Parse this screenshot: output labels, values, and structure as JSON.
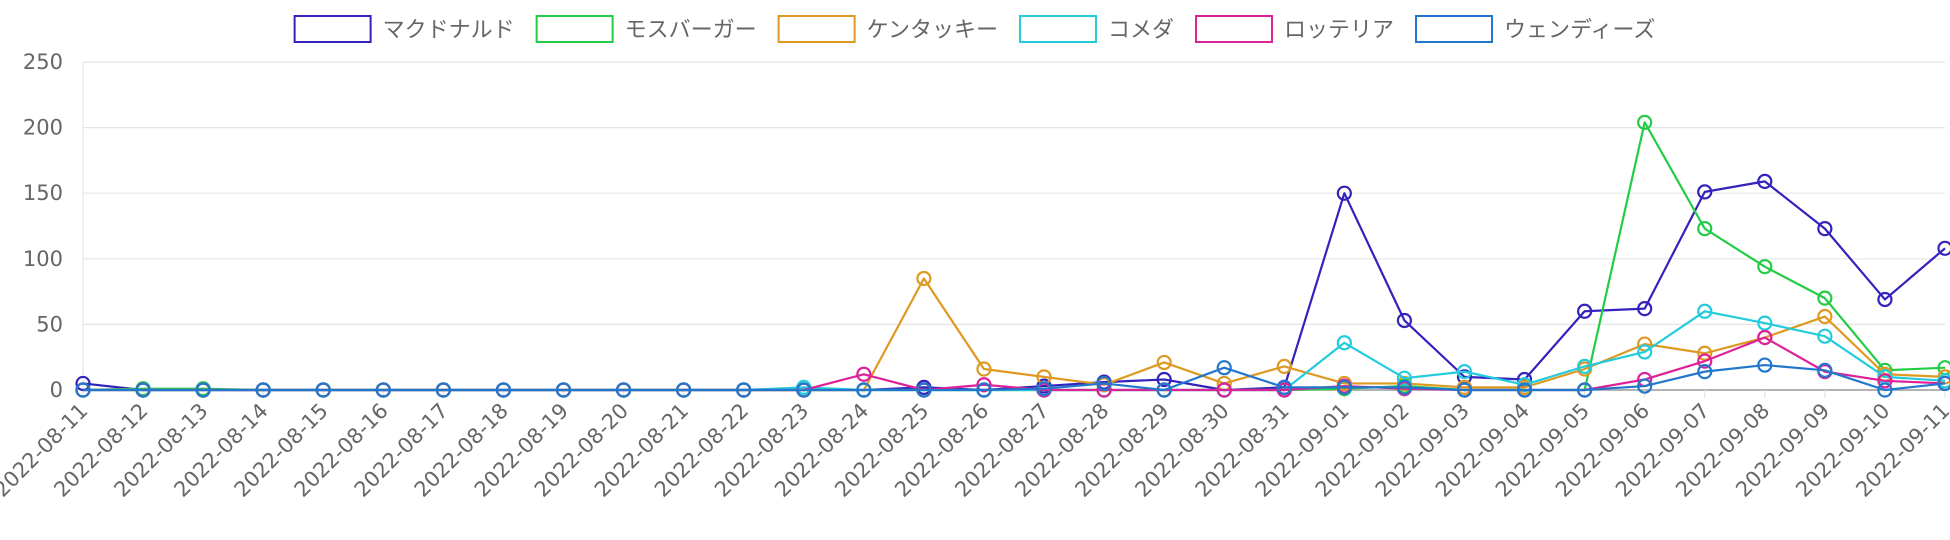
{
  "chart_data": {
    "type": "line",
    "categories": [
      "2022-08-11",
      "2022-08-12",
      "2022-08-13",
      "2022-08-14",
      "2022-08-15",
      "2022-08-16",
      "2022-08-17",
      "2022-08-18",
      "2022-08-19",
      "2022-08-20",
      "2022-08-21",
      "2022-08-22",
      "2022-08-23",
      "2022-08-24",
      "2022-08-25",
      "2022-08-26",
      "2022-08-27",
      "2022-08-28",
      "2022-08-29",
      "2022-08-30",
      "2022-08-31",
      "2022-09-01",
      "2022-09-02",
      "2022-09-03",
      "2022-09-04",
      "2022-09-05",
      "2022-09-06",
      "2022-09-07",
      "2022-09-08",
      "2022-09-09",
      "2022-09-10",
      "2022-09-11"
    ],
    "ylim": [
      0,
      250
    ],
    "yticks": [
      0,
      50,
      100,
      150,
      200,
      250
    ],
    "grid": true,
    "legend_position": "top",
    "series": [
      {
        "name": "マクドナルド",
        "color": "#3322bb",
        "values": [
          5,
          0,
          0,
          0,
          0,
          0,
          0,
          0,
          0,
          0,
          0,
          0,
          0,
          0,
          2,
          0,
          3,
          6,
          8,
          0,
          2,
          150,
          53,
          10,
          8,
          60,
          62,
          151,
          159,
          123,
          69,
          108
        ]
      },
      {
        "name": "モスバーガー",
        "color": "#22cc44",
        "values": [
          0,
          1,
          1,
          0,
          0,
          0,
          0,
          0,
          0,
          0,
          0,
          0,
          0,
          0,
          0,
          0,
          0,
          0,
          0,
          0,
          0,
          1,
          3,
          0,
          0,
          0,
          204,
          123,
          94,
          70,
          15,
          17
        ]
      },
      {
        "name": "ケンタッキー",
        "color": "#dd9922",
        "values": [
          0,
          0,
          0,
          0,
          0,
          0,
          0,
          0,
          0,
          0,
          0,
          0,
          0,
          0,
          85,
          16,
          10,
          4,
          21,
          5,
          18,
          5,
          5,
          2,
          2,
          16,
          35,
          28,
          40,
          56,
          12,
          10
        ]
      },
      {
        "name": "コメダ",
        "color": "#22ccdd",
        "values": [
          0,
          0,
          0,
          0,
          0,
          0,
          0,
          0,
          0,
          0,
          0,
          0,
          2,
          0,
          0,
          0,
          0,
          0,
          0,
          0,
          0,
          36,
          9,
          14,
          4,
          18,
          29,
          60,
          51,
          41,
          10,
          7
        ]
      },
      {
        "name": "ロッテリア",
        "color": "#dd2299",
        "values": [
          0,
          0,
          0,
          0,
          0,
          0,
          0,
          0,
          0,
          0,
          0,
          0,
          0,
          12,
          0,
          4,
          0,
          0,
          0,
          0,
          0,
          3,
          1,
          0,
          0,
          0,
          8,
          22,
          40,
          14,
          7,
          5
        ]
      },
      {
        "name": "ウェンディーズ",
        "color": "#2277cc",
        "values": [
          0,
          0,
          0,
          0,
          0,
          0,
          0,
          0,
          0,
          0,
          0,
          0,
          0,
          0,
          0,
          0,
          1,
          5,
          0,
          17,
          2,
          2,
          2,
          0,
          0,
          0,
          3,
          14,
          19,
          15,
          0,
          5
        ]
      }
    ]
  }
}
